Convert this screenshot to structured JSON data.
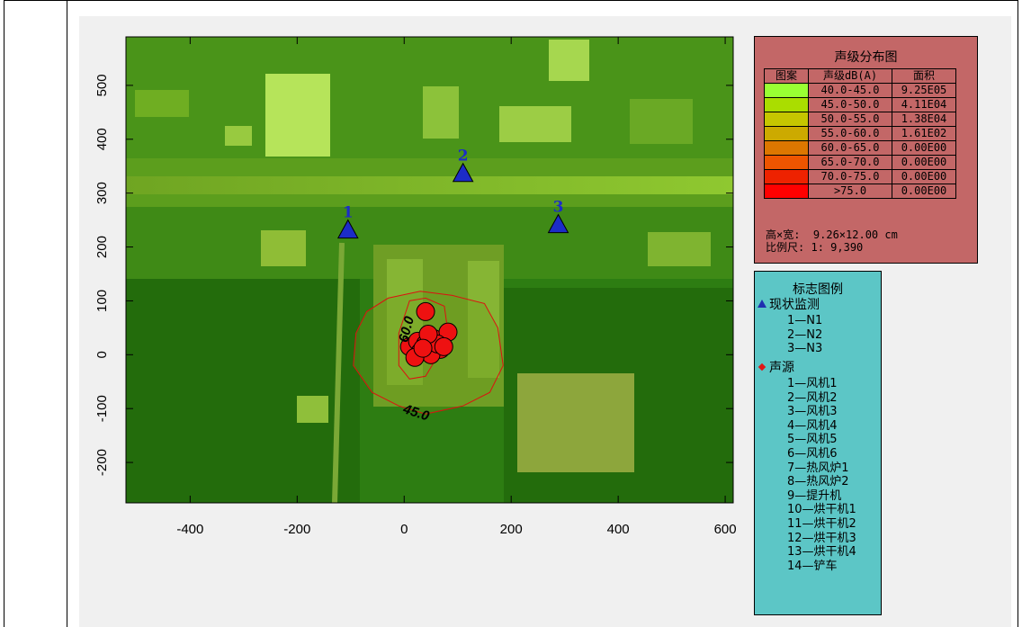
{
  "map": {
    "x_axis": {
      "ticks": [
        -400,
        -200,
        0,
        200,
        400,
        600
      ],
      "range": [
        -520,
        615
      ]
    },
    "y_axis": {
      "ticks": [
        500,
        400,
        300,
        200,
        100,
        0,
        -100,
        -200
      ],
      "range": [
        -275,
        590
      ]
    },
    "background": "satellite-imagery",
    "monitors": [
      {
        "label": "1",
        "x": -105,
        "y": 230
      },
      {
        "label": "2",
        "x": 110,
        "y": 335
      },
      {
        "label": "3",
        "x": 288,
        "y": 240
      }
    ],
    "sources": [
      {
        "x": 40,
        "y": 80
      },
      {
        "x": 10,
        "y": 15
      },
      {
        "x": 25,
        "y": 25
      },
      {
        "x": 40,
        "y": 20
      },
      {
        "x": 55,
        "y": 30
      },
      {
        "x": 68,
        "y": 10
      },
      {
        "x": 82,
        "y": 42
      },
      {
        "x": 30,
        "y": 5
      },
      {
        "x": 50,
        "y": 0
      },
      {
        "x": 62,
        "y": 20
      },
      {
        "x": 20,
        "y": -5
      },
      {
        "x": 45,
        "y": 38
      },
      {
        "x": 74,
        "y": 15
      },
      {
        "x": 35,
        "y": 12
      }
    ],
    "contour_labels": [
      {
        "text": "45.0",
        "x": 20,
        "y": -115
      },
      {
        "text": "60.0",
        "x": 12,
        "y": 45
      }
    ],
    "colors": {
      "monitor": "#1c2cc8",
      "source": "#ee1111",
      "contour": "#dd1010"
    }
  },
  "level_legend": {
    "title": "声级分布图",
    "headers": [
      "图案",
      "声级dB(A)",
      "面积"
    ],
    "rows": [
      {
        "color": "#99ff33",
        "range": "40.0-45.0",
        "area": "9.25E05"
      },
      {
        "color": "#aadd00",
        "range": "45.0-50.0",
        "area": "4.11E04"
      },
      {
        "color": "#c6c600",
        "range": "50.0-55.0",
        "area": "1.38E04"
      },
      {
        "color": "#ccaa00",
        "range": "55.0-60.0",
        "area": "1.61E02"
      },
      {
        "color": "#dd7700",
        "range": "60.0-65.0",
        "area": "0.00E00"
      },
      {
        "color": "#ee5500",
        "range": "65.0-70.0",
        "area": "0.00E00"
      },
      {
        "color": "#ee2200",
        "range": "70.0-75.0",
        "area": "0.00E00"
      },
      {
        "color": "#ff0000",
        "range": ">75.0",
        "area": "0.00E00"
      }
    ],
    "size_label": "高×宽:",
    "size_value": "9.26×12.00 cm",
    "scale_label": "比例尺:",
    "scale_value": "1: 9,390"
  },
  "symbol_legend": {
    "title": "标志图例",
    "monitor_group": "现状监测",
    "monitor_items": [
      "1—N1",
      "2—N2",
      "3—N3"
    ],
    "source_group": "声源",
    "source_items": [
      "1—风机1",
      "2—风机2",
      "3—风机3",
      "4—风机4",
      "5—风机5",
      "6—风机6",
      "7—热风炉1",
      "8—热风炉2",
      "9—提升机",
      "10—烘干机1",
      "11—烘干机2",
      "12—烘干机3",
      "13—烘干机4",
      "14—铲车"
    ]
  }
}
